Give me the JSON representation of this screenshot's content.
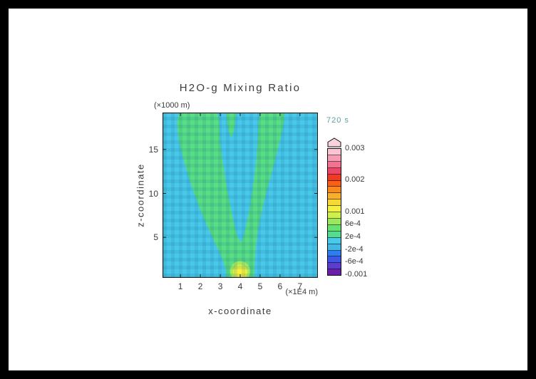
{
  "window": {
    "bg": "#000000",
    "panel_bg": "#ffffff"
  },
  "title": "H2O-g Mixing Ratio",
  "time_label": "720 s",
  "styles": {
    "text_color": "#3a3a3a",
    "time_color": "#5F9EA0",
    "frame_color": "#1a1a1a"
  },
  "axes": {
    "x_title": "x-coordinate",
    "x_unit": "(×1E4 m)",
    "y_title": "z-coordinate",
    "y_unit": "(×1000 m)",
    "x_ticks": [
      "1",
      "2",
      "3",
      "4",
      "5",
      "6",
      "7"
    ],
    "x_tick_values": [
      1,
      2,
      3,
      4,
      5,
      6,
      7
    ],
    "y_ticks": [
      "5",
      "10",
      "15"
    ],
    "y_tick_values": [
      5,
      10,
      15
    ]
  },
  "colorbar": {
    "labels": [
      "0.003",
      "0.002",
      "0.001",
      "6e-4",
      "2e-4",
      "-2e-4",
      "-6e-4",
      "-0.001"
    ],
    "values": [
      0.003,
      0.002,
      0.001,
      0.0006,
      0.0002,
      -0.0002,
      -0.0006,
      -0.001
    ],
    "min": -0.001,
    "max": 0.003,
    "segment_colors_bottom_to_top": [
      "#6B1FA8",
      "#5B3BD0",
      "#3F55E4",
      "#2E7CF0",
      "#3FB8E8",
      "#49C9EA",
      "#53DD91",
      "#66E273",
      "#9AE85E",
      "#CFEF4E",
      "#F2F13E",
      "#F8D832",
      "#F8B028",
      "#F88A1E",
      "#F86014",
      "#F23A22",
      "#EE4668",
      "#F4718F",
      "#F79DB3",
      "#FAC4D2"
    ],
    "arrow_cap_color": "#FAD2DC",
    "border_color": "#111111"
  },
  "chart_data": {
    "type": "heatmap",
    "subtype": "filled-contour",
    "title": "H2O-g Mixing Ratio",
    "xlabel": "x-coordinate (×1E4 m)",
    "ylabel": "z-coordinate (×1000 m)",
    "time": "720 s",
    "xlim": [
      0.1,
      7.9
    ],
    "ylim": [
      0.4,
      19.2
    ],
    "levels": [
      -0.001,
      -0.0006,
      -0.0002,
      0.0002,
      0.0006,
      0.001,
      0.002,
      0.003
    ],
    "background_value": 0,
    "background_color": "#49C9EA",
    "plume_value_range": [
      0.0002,
      0.0006
    ],
    "plume_color": "#58DF86",
    "regions": {
      "plume_polygon": [
        [
          3.35,
          -0.3
        ],
        [
          3.25,
          2
        ],
        [
          2.7,
          4.5
        ],
        [
          2.1,
          7.5
        ],
        [
          1.6,
          10.5
        ],
        [
          1.2,
          13.5
        ],
        [
          0.9,
          16
        ],
        [
          0.78,
          19.8
        ],
        [
          2.95,
          19.8
        ],
        [
          2.95,
          16.5
        ],
        [
          3.12,
          13.5
        ],
        [
          3.35,
          10.5
        ],
        [
          3.6,
          7.5
        ],
        [
          3.85,
          5.2
        ],
        [
          4.02,
          4.3
        ],
        [
          4.18,
          5.2
        ],
        [
          4.42,
          7.5
        ],
        [
          4.62,
          10.5
        ],
        [
          4.8,
          13.5
        ],
        [
          4.9,
          16.5
        ],
        [
          4.93,
          19.8
        ],
        [
          6.35,
          19.8
        ],
        [
          6.05,
          16.5
        ],
        [
          5.72,
          13.5
        ],
        [
          5.35,
          10.5
        ],
        [
          5.02,
          7.5
        ],
        [
          4.8,
          4.5
        ],
        [
          4.72,
          2
        ],
        [
          4.68,
          -0.3
        ]
      ],
      "center_streak": [
        [
          3.28,
          19.8
        ],
        [
          3.82,
          19.8
        ],
        [
          3.76,
          17.8
        ],
        [
          3.55,
          16.0
        ],
        [
          3.34,
          17.8
        ]
      ],
      "source_rings": [
        {
          "cx": 4.0,
          "cy": 1.15,
          "rx": 0.5,
          "ry": 1.15,
          "color": "#A8EA58"
        },
        {
          "cx": 4.0,
          "cy": 1.05,
          "rx": 0.36,
          "ry": 0.85,
          "color": "#E0F148"
        },
        {
          "cx": 4.0,
          "cy": 1.0,
          "rx": 0.24,
          "ry": 0.58,
          "color": "#F8F13C"
        }
      ]
    }
  }
}
